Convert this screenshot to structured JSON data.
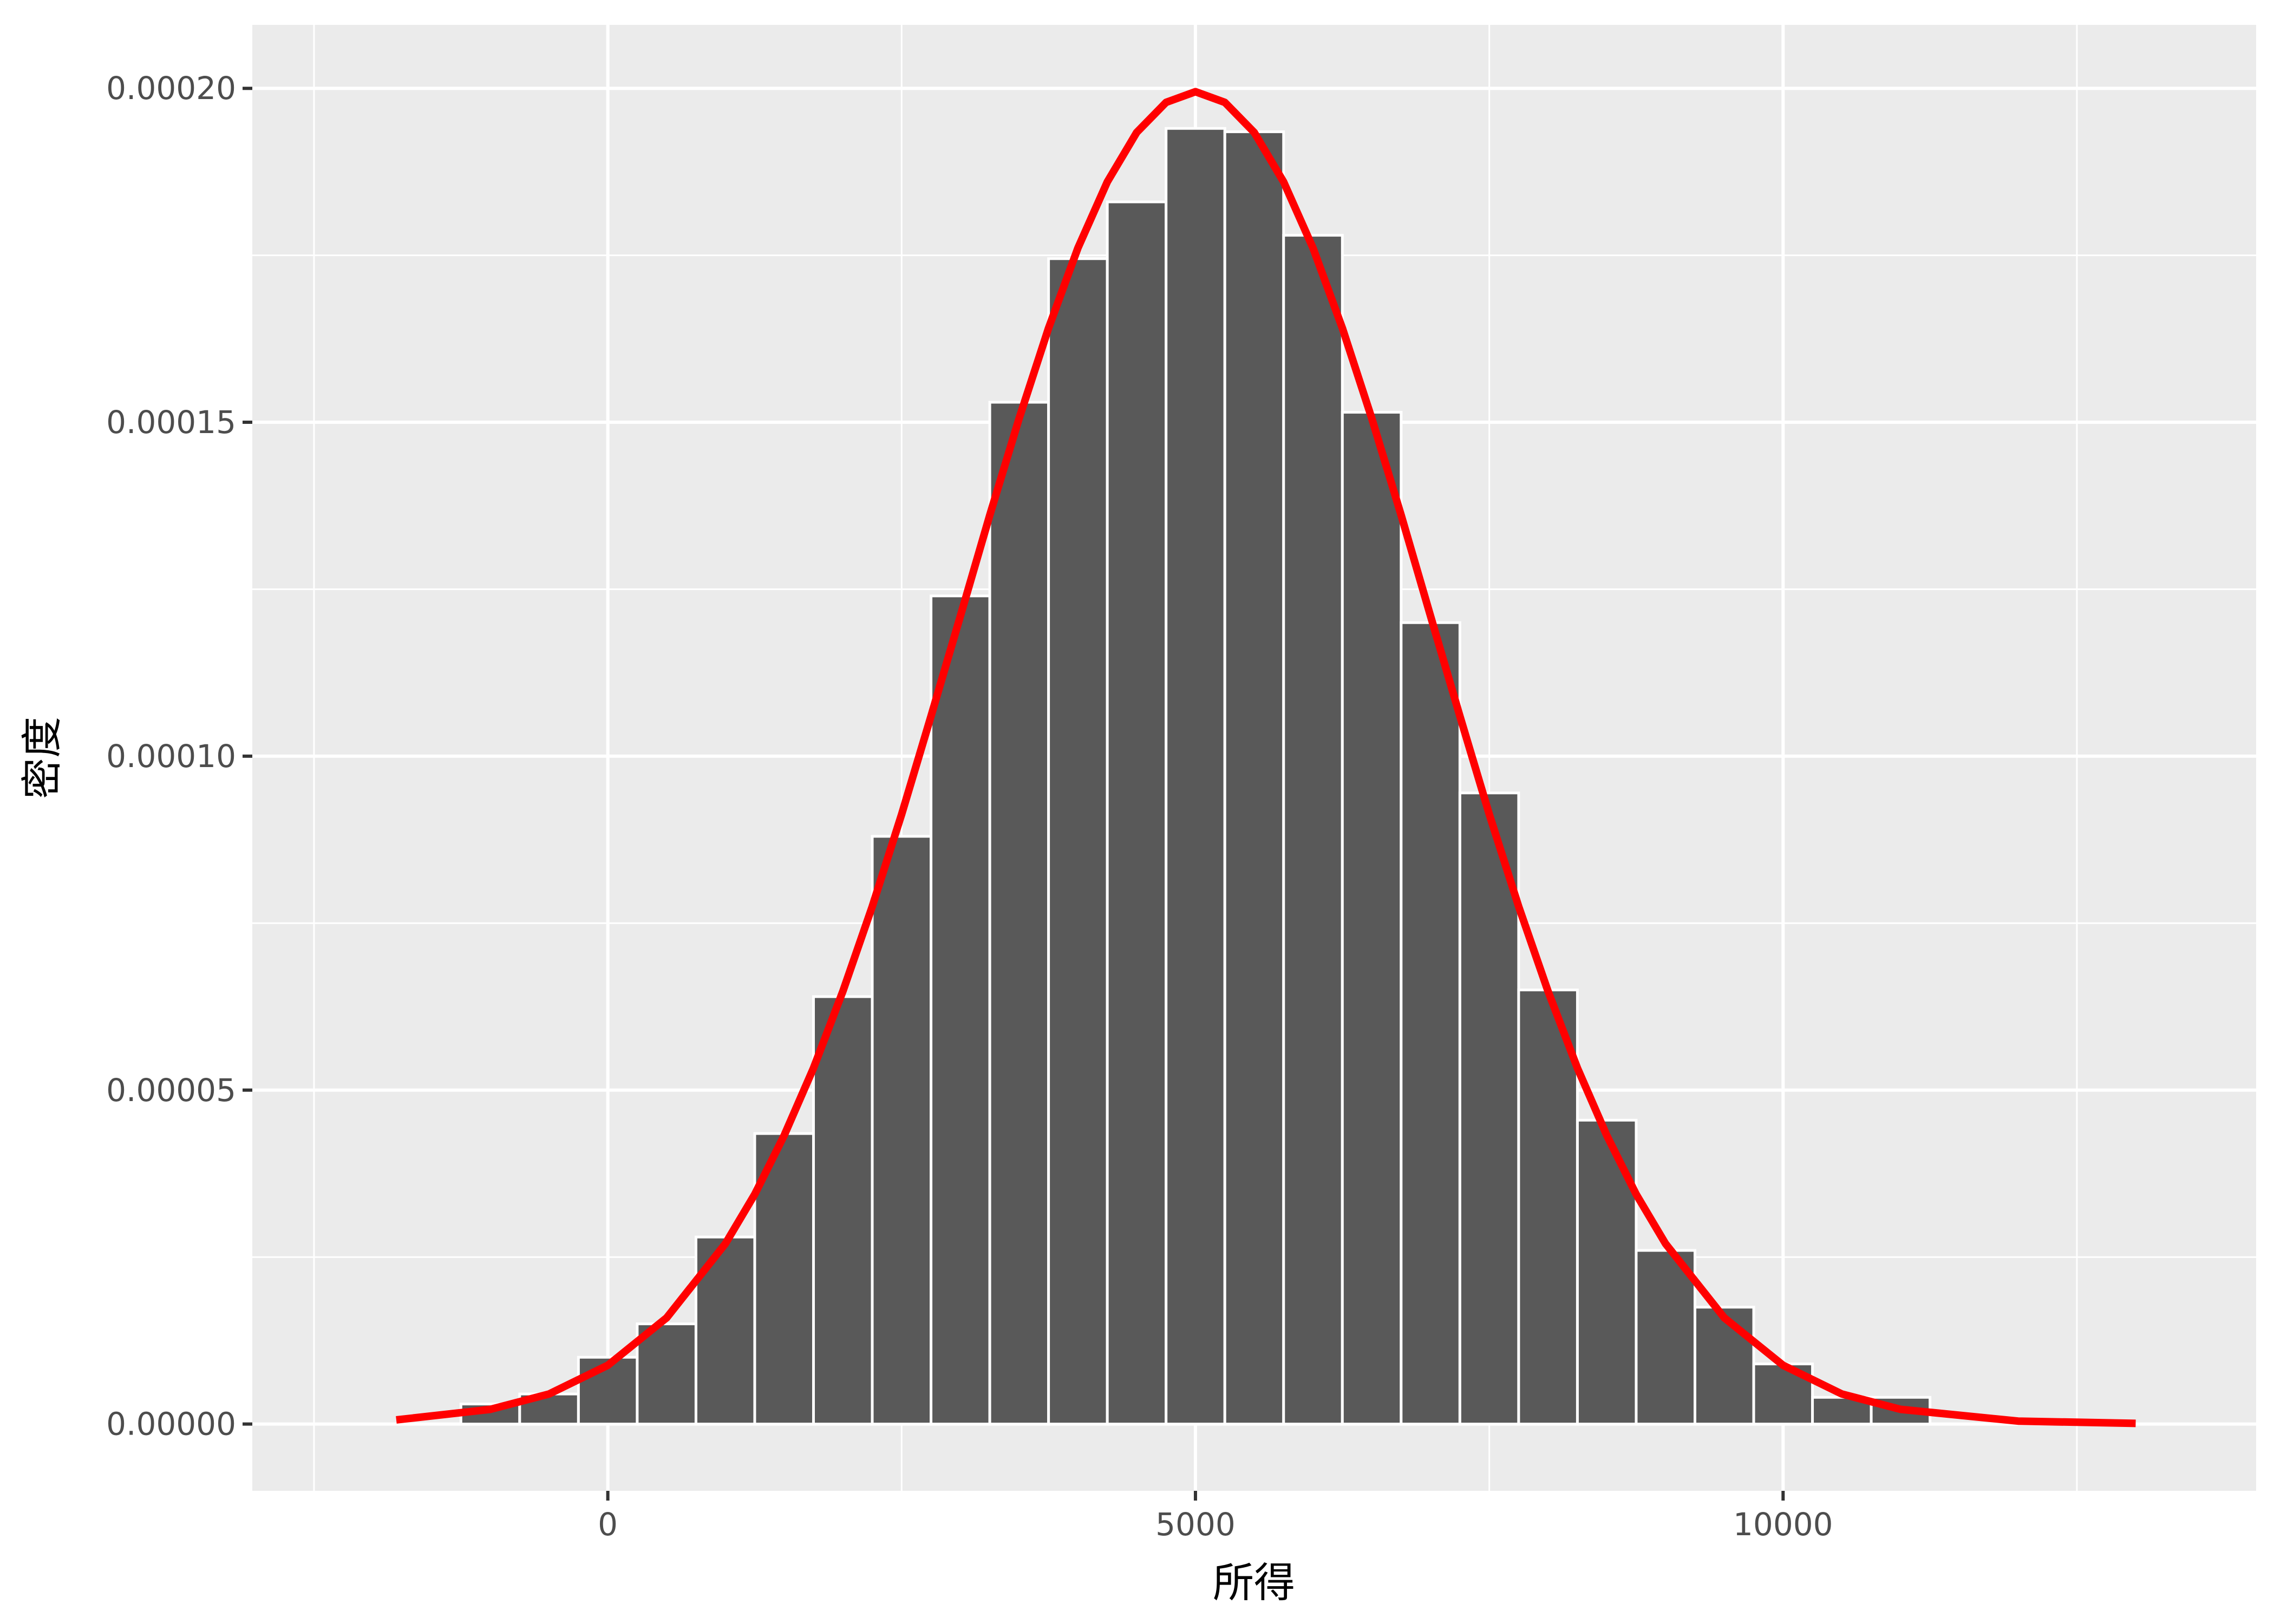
{
  "chart_data": {
    "type": "histogram",
    "x_label": "所得",
    "y_label": "密度",
    "bins": [
      -2250,
      -1750,
      -1250,
      -750,
      -250,
      250,
      750,
      1250,
      1750,
      2250,
      2750,
      3250,
      3750,
      4250,
      4750,
      5250,
      5750,
      6250,
      6750,
      7250,
      7750,
      8250,
      8750,
      9250,
      9750,
      10250,
      10750,
      11250,
      11750,
      12250,
      12750,
      13250
    ],
    "values": [
      0,
      0,
      3e-06,
      4.5e-06,
      1e-05,
      1.5e-05,
      2.8e-05,
      4.35e-05,
      6.4e-05,
      8.8e-05,
      0.000124,
      0.000153,
      0.0001745,
      0.000183,
      0.000194,
      0.0001935,
      0.000178,
      0.0001515,
      0.00012,
      9.45e-05,
      6.5e-05,
      4.55e-05,
      2.6e-05,
      1.75e-05,
      9e-06,
      4e-06,
      4e-06,
      0,
      0,
      0,
      0
    ],
    "color": "#595959",
    "edge_color": "#ffffff",
    "curve": {
      "color": "#ff0000",
      "x": [
        -1800,
        -1000,
        -500,
        0,
        500,
        1000,
        1250,
        1500,
        1750,
        2000,
        2250,
        2500,
        2750,
        3000,
        3250,
        3500,
        3750,
        4000,
        4250,
        4500,
        4750,
        5000,
        5250,
        5500,
        5750,
        6000,
        6250,
        6500,
        6750,
        7000,
        7250,
        7500,
        7750,
        8000,
        8250,
        8500,
        8750,
        9000,
        9500,
        10000,
        10500,
        11000,
        12000,
        13000
      ],
      "values": [
        6.2e-07,
        2.2e-06,
        4.5e-06,
        8.8e-06,
        1.59e-05,
        2.7e-05,
        3.44e-05,
        4.32e-05,
        5.33e-05,
        6.48e-05,
        7.75e-05,
        9.13e-05,
        0.000106,
        0.000121,
        0.0001361,
        0.0001506,
        0.0001641,
        0.0001761,
        0.000186,
        0.0001934,
        0.0001979,
        0.0001995,
        0.0001979,
        0.0001934,
        0.000186,
        0.0001761,
        0.0001641,
        0.0001506,
        0.0001361,
        0.000121,
        0.000106,
        9.13e-05,
        7.75e-05,
        6.48e-05,
        5.33e-05,
        4.32e-05,
        3.44e-05,
        2.7e-05,
        1.59e-05,
        8.8e-06,
        4.5e-06,
        2.2e-06,
        4.4e-07,
        1e-07
      ]
    },
    "xlim": [
      -3025,
      14025
    ],
    "xticks": [
      0,
      5000,
      10000
    ],
    "xminor": [
      -2500,
      2500,
      7500,
      12500
    ],
    "ylim": [
      -1e-05,
      0.0002095
    ],
    "yticks": [
      {
        "value": 0,
        "label": "0.00000"
      },
      {
        "value": 5e-05,
        "label": "0.00005"
      },
      {
        "value": 0.0001,
        "label": "0.00010"
      },
      {
        "value": 0.00015,
        "label": "0.00015"
      },
      {
        "value": 0.0002,
        "label": "0.00020"
      }
    ],
    "yminor": [
      2.5e-05,
      7.5e-05,
      0.000125,
      0.000175
    ],
    "grid": true
  }
}
